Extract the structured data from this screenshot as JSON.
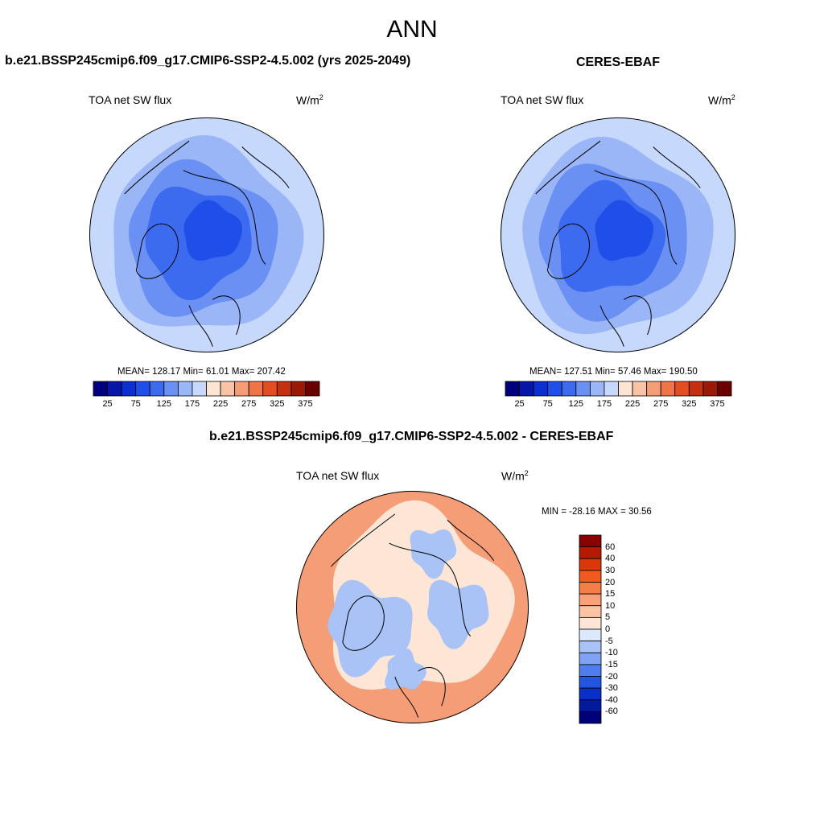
{
  "title": "ANN",
  "panels": [
    {
      "title": "b.e21.BSSP245cmip6.f09_g17.CMIP6-SSP2-4.5.002 (yrs 2025-2049)",
      "variable": "TOA net SW flux",
      "units": "W/m",
      "units_sup": "2",
      "stats": "MEAN= 128.17  Min=  61.01  Max= 207.42"
    },
    {
      "title": "CERES-EBAF",
      "variable": "TOA net SW flux",
      "units": "W/m",
      "units_sup": "2",
      "stats": "MEAN= 127.51  Min=  57.46  Max= 190.50"
    },
    {
      "title": "b.e21.BSSP245cmip6.f09_g17.CMIP6-SSP2-4.5.002 - CERES-EBAF",
      "variable": "TOA net SW flux",
      "units": "W/m",
      "units_sup": "2",
      "stats": "MIN = -28.16 MAX =  30.56"
    }
  ],
  "colorbar_abs": {
    "tick_labels": [
      "25",
      "75",
      "125",
      "175",
      "225",
      "275",
      "325",
      "375"
    ],
    "colors": [
      "#00007f",
      "#0516a8",
      "#0b2fd0",
      "#1f4fe8",
      "#3d6bf0",
      "#6a90f4",
      "#9ab6f7",
      "#c6d8fb",
      "#fde5d6",
      "#f9c3a6",
      "#f59d76",
      "#ef7448",
      "#e24d22",
      "#c5310e",
      "#9a1a05",
      "#6b0000"
    ]
  },
  "colorbar_diff": {
    "tick_labels": [
      "60",
      "40",
      "30",
      "20",
      "15",
      "10",
      "5",
      "0",
      "-5",
      "-10",
      "-15",
      "-20",
      "-30",
      "-40",
      "-60"
    ],
    "colors": [
      "#8b0000",
      "#b51a00",
      "#d9380a",
      "#f05a20",
      "#f47d48",
      "#f8a077",
      "#fbc3a5",
      "#fde6d6",
      "#dce8fb",
      "#a9c3f6",
      "#7fa3f2",
      "#4f7ded",
      "#2355e3",
      "#0a2fc9",
      "#031a9e",
      "#000078"
    ]
  },
  "colors": {
    "map_light": "#c6d8fb",
    "map_mid": "#9ab6f7",
    "map_blue": "#6a90f4",
    "map_deep": "#3d6bf0",
    "map_core": "#1f4fe8",
    "diff_pos": "#f59d76",
    "diff_neg": "#a9c3f6",
    "diff_zero": "#fde6d6"
  }
}
